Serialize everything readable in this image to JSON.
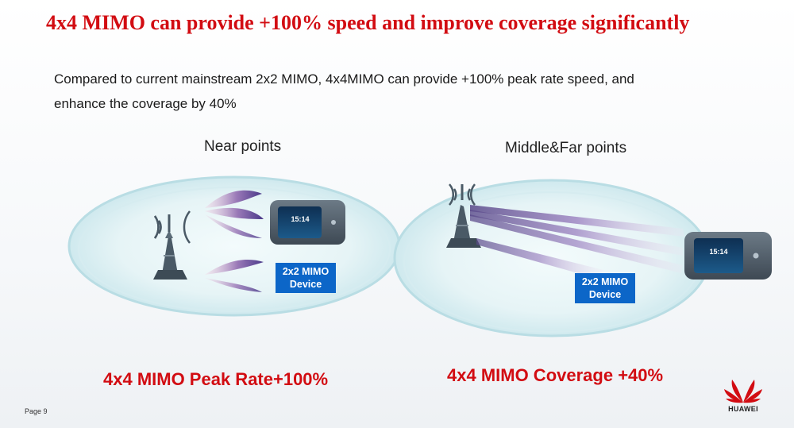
{
  "slide": {
    "title": "4x4 MIMO can provide +100% speed and improve coverage significantly",
    "subtitle_lines": [
      "Compared to current mainstream 2x2 MIMO,  4x4MIMO can provide +100% peak rate speed, and",
      "enhance the coverage by 40%"
    ]
  },
  "panels": [
    {
      "heading": "Near points",
      "device_label_lines": [
        "2x2 MIMO",
        "Device"
      ],
      "device_screen_time": "15:14",
      "caption": "4x4 MIMO Peak Rate+100%"
    },
    {
      "heading": "Middle&Far points",
      "device_label_lines": [
        "2x2 MIMO",
        "Device"
      ],
      "device_screen_time": "15:14",
      "caption": "4x4 MIMO Coverage +40%"
    }
  ],
  "footer": {
    "page_label": "Page 9",
    "brand": "HUAWEI"
  },
  "colors": {
    "accent_red": "#d20c12",
    "label_blue": "#0c66c8",
    "beam_purple": "#7a5a9e",
    "tower_gray": "#4a5a66"
  },
  "icons": [
    "antenna-tower-icon",
    "signal-waves-icon",
    "mifi-device-icon",
    "huawei-logo-icon"
  ]
}
